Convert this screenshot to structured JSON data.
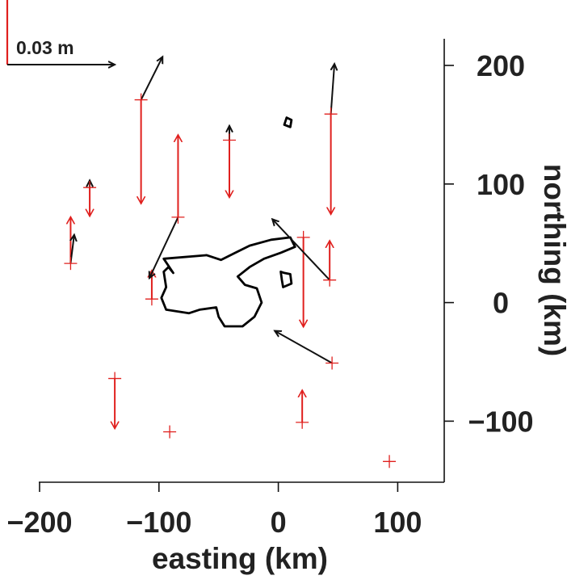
{
  "chart_data": {
    "type": "vector-field map",
    "xlabel": "easting (km)",
    "ylabel": "northing (km)",
    "xlim": [
      -200,
      140
    ],
    "ylim": [
      -150,
      220
    ],
    "x_ticks": [
      -200,
      -100,
      0,
      100
    ],
    "y_ticks": [
      -100,
      0,
      100,
      200
    ],
    "x_tick_labels": [
      "−200",
      "−100",
      "0",
      "100"
    ],
    "y_tick_labels": [
      "−100",
      "0",
      "100",
      "200"
    ],
    "scale_label": "0.03 m",
    "scale_length_m": 0.03,
    "colors": {
      "horizontal": "#111111",
      "vertical": "#e0201e",
      "coast": "#000000"
    },
    "stations": [
      {
        "x": -115,
        "y": 171,
        "dx": 0.006,
        "dy": 0.012,
        "vz": -0.029
      },
      {
        "x": 44,
        "y": 159,
        "dx": 0.001,
        "dy": 0.014,
        "vz": -0.028
      },
      {
        "x": -41,
        "y": 137,
        "dx": 0.0,
        "dy": 0.004,
        "vz": -0.016
      },
      {
        "x": -158,
        "y": 97,
        "dx": 0.0,
        "dy": 0.002,
        "vz": -0.008
      },
      {
        "x": -84,
        "y": 72,
        "dx": -0.008,
        "dy": -0.017,
        "vz": 0.023
      },
      {
        "x": -174,
        "y": 33,
        "dx": 0.001,
        "dy": 0.008,
        "vz": 0.013
      },
      {
        "x": 21,
        "y": 55,
        "dx": 0.0,
        "dy": 0.0,
        "vz": -0.025
      },
      {
        "x": 43,
        "y": 19,
        "dx": -0.016,
        "dy": 0.017,
        "vz": 0.011
      },
      {
        "x": -106,
        "y": 3,
        "dx": 0.0,
        "dy": 0.0,
        "vz": 0.008
      },
      {
        "x": 45,
        "y": -51,
        "dx": -0.016,
        "dy": 0.009,
        "vz": 0.0
      },
      {
        "x": -137,
        "y": -64,
        "dx": 0.0,
        "dy": 0.0,
        "vz": -0.014
      },
      {
        "x": 20,
        "y": -101,
        "dx": 0.0,
        "dy": 0.0,
        "vz": 0.009
      },
      {
        "x": -91,
        "y": -109,
        "dx": 0.0,
        "dy": 0.0,
        "vz": 0.0
      },
      {
        "x": 93,
        "y": -134,
        "dx": 0.0,
        "dy": 0.0,
        "vz": 0.0
      }
    ],
    "coastlines": [
      [
        [
          -94,
          13
        ],
        [
          -96,
          26
        ],
        [
          -92,
          30
        ],
        [
          -88,
          25
        ],
        [
          -96,
          37
        ],
        [
          -60,
          40
        ],
        [
          -48,
          36
        ],
        [
          -36,
          42
        ],
        [
          -24,
          48
        ],
        [
          -6,
          53
        ],
        [
          10,
          55
        ],
        [
          14,
          47
        ],
        [
          2,
          42
        ],
        [
          -12,
          37
        ],
        [
          -24,
          30
        ],
        [
          -34,
          22
        ],
        [
          -28,
          15
        ],
        [
          -18,
          12
        ],
        [
          -14,
          0
        ],
        [
          -20,
          -12
        ],
        [
          -30,
          -20
        ],
        [
          -45,
          -20
        ],
        [
          -50,
          -12
        ],
        [
          -52,
          -4
        ],
        [
          -66,
          -6
        ],
        [
          -75,
          -9
        ],
        [
          -94,
          -6
        ],
        [
          -98,
          4
        ],
        [
          -94,
          13
        ]
      ],
      [
        [
          5,
          150
        ],
        [
          7,
          156
        ],
        [
          11,
          154
        ],
        [
          10,
          148
        ],
        [
          5,
          150
        ]
      ],
      [
        [
          2,
          26
        ],
        [
          5,
          25
        ],
        [
          10,
          24
        ],
        [
          11,
          16
        ],
        [
          4,
          13
        ],
        [
          3,
          19
        ],
        [
          2,
          26
        ]
      ]
    ]
  }
}
